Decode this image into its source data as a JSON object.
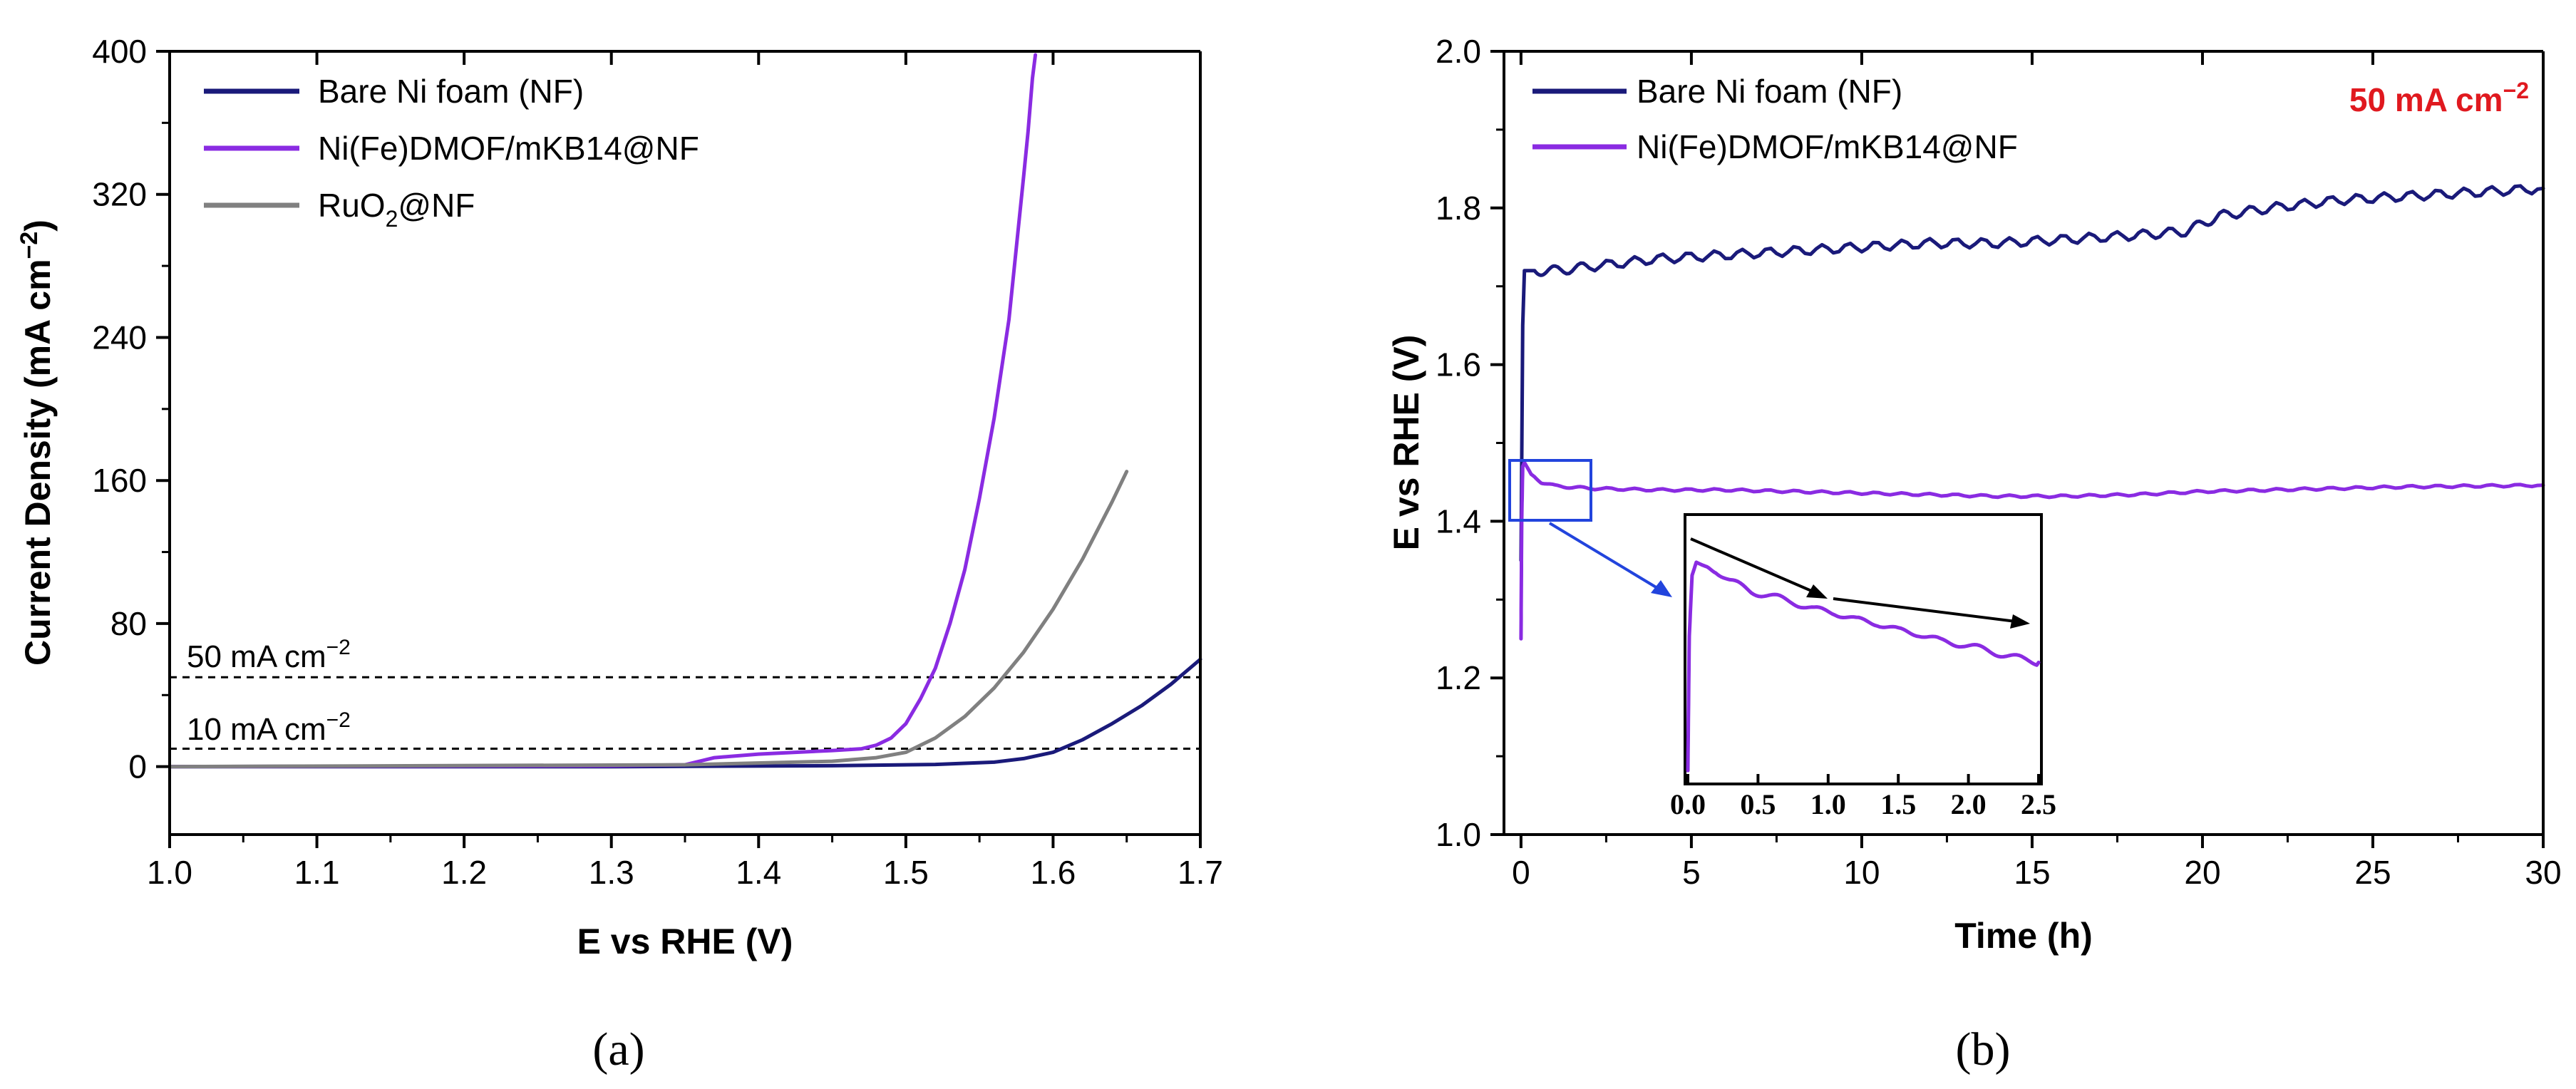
{
  "colors": {
    "navy": "#1a1a7a",
    "purple": "#8a2be2",
    "gray": "#808080",
    "red": "#e0191f",
    "blue_box": "#2244dd"
  },
  "chart_data": [
    {
      "panel_label": "(a)",
      "type": "line",
      "xlabel": "E vs RHE (V)",
      "ylabel": "Current Density (mA cm−2)",
      "ylabel_main": "Current Density (mA cm",
      "ylabel_sup": "−2",
      "ylabel_close": ")",
      "xlim": [
        1.0,
        1.7
      ],
      "ylim": [
        -38,
        400
      ],
      "xticks": [
        1.0,
        1.1,
        1.2,
        1.3,
        1.4,
        1.5,
        1.6,
        1.7
      ],
      "xtick_labels": [
        "1.0",
        "1.1",
        "1.2",
        "1.3",
        "1.4",
        "1.5",
        "1.6",
        "1.7"
      ],
      "yticks": [
        0,
        80,
        160,
        240,
        320,
        400
      ],
      "ytick_labels": [
        "0",
        "80",
        "160",
        "240",
        "320",
        "400"
      ],
      "legend_position": "top-left",
      "reference_lines": [
        {
          "y": 50,
          "label_main": "50 mA cm",
          "label_sup": "−2"
        },
        {
          "y": 10,
          "label_main": "10 mA cm",
          "label_sup": "−2"
        }
      ],
      "series": [
        {
          "name": "Bare Ni foam (NF)",
          "color": "#1a1a7a",
          "x": [
            1.0,
            1.3,
            1.45,
            1.52,
            1.56,
            1.58,
            1.6,
            1.62,
            1.64,
            1.66,
            1.68,
            1.7
          ],
          "y": [
            0,
            0,
            0.5,
            1.2,
            2.5,
            4.5,
            8,
            15,
            24,
            34,
            46,
            60
          ]
        },
        {
          "name": "Ni(Fe)DMOF/mKB14@NF",
          "name_parts": [
            "Ni(Fe)DMOF/mKB14@NF"
          ],
          "color": "#8a2be2",
          "x": [
            1.0,
            1.3,
            1.35,
            1.36,
            1.37,
            1.4,
            1.45,
            1.47,
            1.48,
            1.49,
            1.5,
            1.51,
            1.52,
            1.53,
            1.54,
            1.55,
            1.56,
            1.57,
            1.575,
            1.58,
            1.583,
            1.586,
            1.588
          ],
          "y": [
            0,
            0.5,
            1,
            3,
            5,
            7,
            9,
            10,
            12,
            16,
            24,
            38,
            55,
            80,
            110,
            150,
            195,
            250,
            290,
            330,
            355,
            385,
            398
          ]
        },
        {
          "name": "RuO2@NF",
          "name_parts": [
            "RuO",
            "2",
            "@NF"
          ],
          "color": "#808080",
          "x": [
            1.0,
            1.35,
            1.45,
            1.48,
            1.5,
            1.52,
            1.54,
            1.56,
            1.58,
            1.6,
            1.62,
            1.64,
            1.65
          ],
          "y": [
            0,
            1,
            3,
            5,
            8,
            16,
            28,
            44,
            64,
            88,
            116,
            148,
            165
          ]
        }
      ]
    },
    {
      "panel_label": "(b)",
      "type": "line",
      "xlabel": "Time (h)",
      "ylabel": "E vs RHE (V)",
      "xlim": [
        -0.5,
        30
      ],
      "ylim": [
        1.0,
        2.0
      ],
      "xticks": [
        0,
        5,
        10,
        15,
        20,
        25,
        30
      ],
      "xtick_labels": [
        "0",
        "5",
        "10",
        "15",
        "20",
        "25",
        "30"
      ],
      "yticks": [
        1.0,
        1.2,
        1.4,
        1.6,
        1.8,
        2.0
      ],
      "ytick_labels": [
        "1.0",
        "1.2",
        "1.4",
        "1.6",
        "1.8",
        "2.0"
      ],
      "legend_position": "top-left",
      "annotation_main": "50 mA cm",
      "annotation_sup": "−2",
      "series": [
        {
          "name": "Bare Ni foam (NF)",
          "color": "#1a1a7a",
          "x": [
            0,
            0.05,
            0.1,
            0.2,
            0.5,
            1,
            2,
            4,
            6,
            8,
            10,
            12,
            14,
            16,
            18,
            19.5,
            20.5,
            22,
            24,
            26,
            28,
            30
          ],
          "y": [
            1.35,
            1.65,
            1.72,
            1.72,
            1.72,
            1.72,
            1.725,
            1.735,
            1.74,
            1.745,
            1.75,
            1.755,
            1.755,
            1.76,
            1.765,
            1.77,
            1.79,
            1.8,
            1.81,
            1.815,
            1.82,
            1.825
          ]
        },
        {
          "name": "Ni(Fe)DMOF/mKB14@NF",
          "color": "#8a2be2",
          "x": [
            0,
            0.02,
            0.05,
            0.1,
            0.3,
            0.6,
            1,
            2,
            4,
            6,
            8,
            10,
            12,
            14,
            16,
            18,
            20,
            22,
            24,
            26,
            28,
            30
          ],
          "y": [
            1.25,
            1.4,
            1.47,
            1.475,
            1.46,
            1.45,
            1.445,
            1.442,
            1.44,
            1.44,
            1.438,
            1.436,
            1.434,
            1.432,
            1.432,
            1.434,
            1.438,
            1.44,
            1.442,
            1.444,
            1.445,
            1.446
          ]
        }
      ],
      "inset": {
        "xlim": [
          0.0,
          2.5
        ],
        "xticks": [
          0.0,
          0.5,
          1.0,
          1.5,
          2.0,
          2.5
        ],
        "xtick_labels": [
          "0.0",
          "0.5",
          "1.0",
          "1.5",
          "2.0",
          "2.5"
        ],
        "x": [
          0.0,
          0.01,
          0.03,
          0.06,
          0.1,
          0.2,
          0.3,
          0.45,
          0.6,
          0.75,
          0.9,
          1.05,
          1.2,
          1.35,
          1.5,
          1.65,
          1.8,
          1.95,
          2.1,
          2.25,
          2.4,
          2.5
        ],
        "y": [
          0.04,
          0.55,
          0.78,
          0.83,
          0.82,
          0.8,
          0.76,
          0.72,
          0.7,
          0.68,
          0.65,
          0.64,
          0.61,
          0.6,
          0.57,
          0.56,
          0.53,
          0.52,
          0.5,
          0.48,
          0.46,
          0.45
        ]
      }
    }
  ]
}
